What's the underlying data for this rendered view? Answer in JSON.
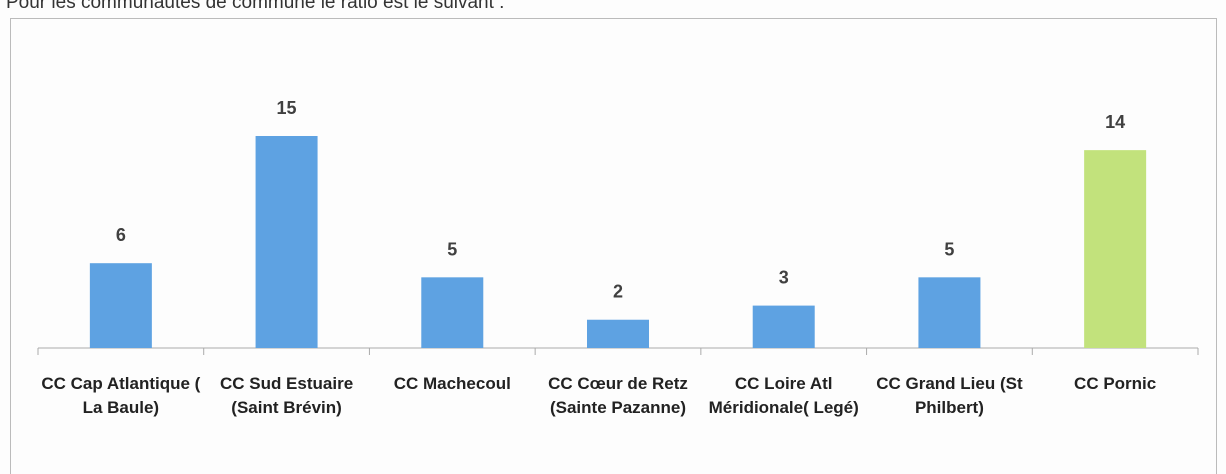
{
  "chart_data": {
    "type": "bar",
    "title": "Pour les communautés de commune le ratio est le suivant :",
    "categories": [
      "CC Cap Atlantique ( La Baule)",
      "CC Sud Estuaire (Saint Brévin)",
      "CC Machecoul",
      "CC Cœur de Retz (Sainte Pazanne)",
      "CC Loire  Atl Méridionale( Legé)",
      "CC Grand Lieu (St Philbert)",
      "CC Pornic"
    ],
    "values": [
      6,
      15,
      5,
      2,
      3,
      5,
      14
    ],
    "colors": [
      "#5ea2e2",
      "#5ea2e2",
      "#5ea2e2",
      "#5ea2e2",
      "#5ea2e2",
      "#5ea2e2",
      "#c2e27c"
    ],
    "grid": false
  }
}
